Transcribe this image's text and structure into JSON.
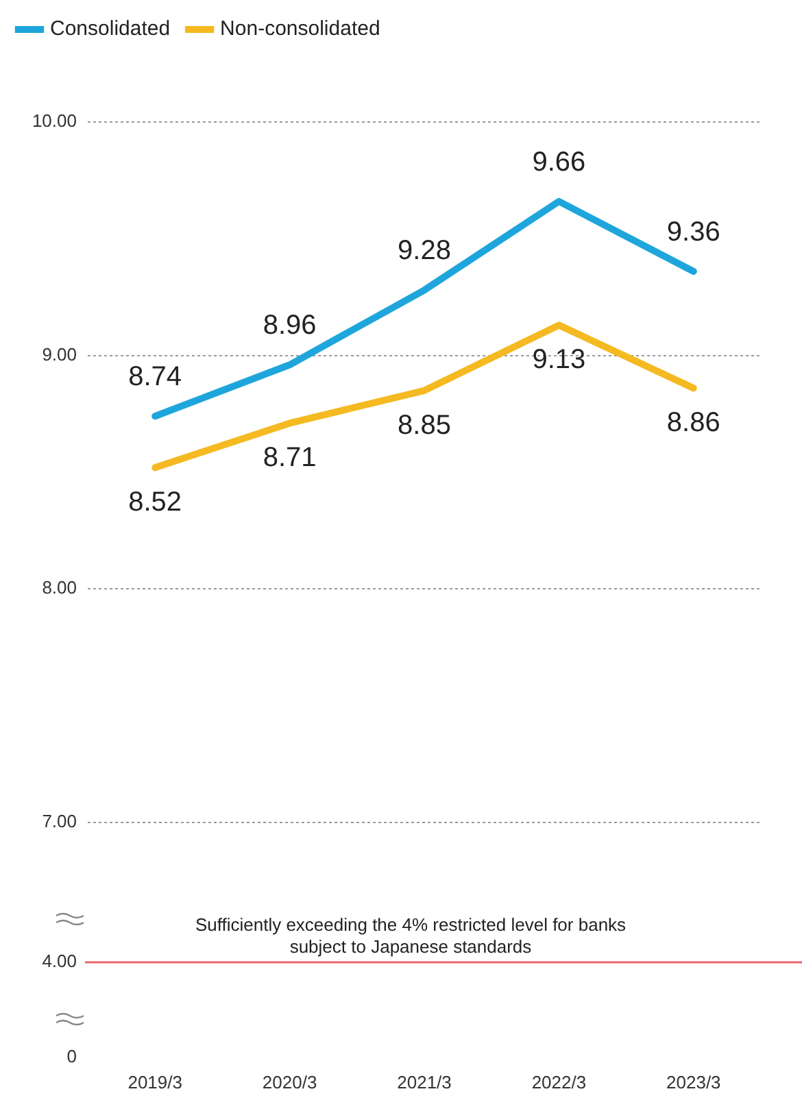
{
  "chart_data": [
    {
      "type": "line",
      "categories": [
        "2019/3",
        "2020/3",
        "2021/3",
        "2022/3",
        "2023/3"
      ],
      "series": [
        {
          "name": "Consolidated",
          "color": "#1ea6dc",
          "values": [
            8.74,
            8.96,
            9.28,
            9.66,
            9.36
          ]
        },
        {
          "name": "Non-consolidated",
          "color": "#f5b921",
          "values": [
            8.52,
            8.71,
            8.85,
            9.13,
            8.86
          ]
        }
      ],
      "ylim": [
        7,
        10
      ],
      "yticks": [
        {
          "value": 7,
          "label": "7.00"
        },
        {
          "value": 8,
          "label": "8.00"
        },
        {
          "value": 9,
          "label": "9.00"
        },
        {
          "value": 10,
          "label": "10.00"
        }
      ],
      "grid": "y",
      "legend": "top left",
      "data_labels": true,
      "marker": "none",
      "line_style": "solid",
      "tick_labels": "y"
    },
    {
      "type": "line",
      "categories": [
        "2019/3",
        "2020/3",
        "2021/3",
        "2022/3",
        "2023/3"
      ],
      "ylim": [
        0,
        4
      ],
      "yticks": [
        0,
        {
          "value": 4,
          "label": "4.00"
        }
      ],
      "ref_lines": [
        {
          "axis": "y",
          "value": 4,
          "label": "Sufficiently exceeding the 4% restricted level for banks subject to Japanese standards",
          "color": "#e8636b"
        }
      ]
    }
  ]
}
